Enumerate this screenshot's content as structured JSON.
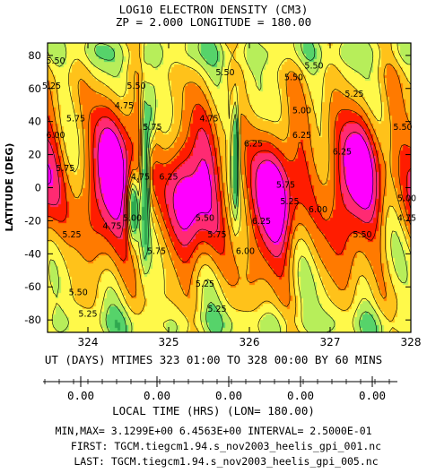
{
  "chart_data": {
    "type": "heatmap",
    "title": "LOG10 ELECTRON DENSITY (CM3)",
    "subtitle": "ZP =    2.000 LONGITUDE =   180.00",
    "ylabel": "LATITUDE (DEG)",
    "xlabel": "UT (DAYS) MTIMES 323 01:00 TO 328 00:00 BY    60 MINS",
    "xlim": [
      323.5,
      328.0
    ],
    "ylim": [
      -87.5,
      87.5
    ],
    "x_ticks": [
      "324",
      "325",
      "326",
      "327",
      "328"
    ],
    "y_ticks": [
      "80",
      "60",
      "40",
      "20",
      "0",
      "-20",
      "-40",
      "-60",
      "-80"
    ],
    "local_time_label": "LOCAL TIME (HRS) (LON= 180.00)",
    "local_time_ticks": [
      "0.00",
      "0.00",
      "0.00",
      "0.00",
      "0.00"
    ],
    "min_max_line": "MIN,MAX=  3.1299E+00  6.4563E+00 INTERVAL=  2.5000E-01",
    "first_file": "FIRST: TGCM.tiegcm1.94.s_nov2003_heelis_gpi_001.nc",
    "last_file": "LAST:  TGCM.tiegcm1.94.s_nov2003_heelis_gpi_005.nc",
    "min": 3.1299,
    "max": 6.4563,
    "interval": 0.25,
    "contour_labels": [
      {
        "text": "5.25",
        "x": 323.55,
        "y": 60
      },
      {
        "text": "5.50",
        "x": 323.6,
        "y": 75
      },
      {
        "text": "6.00",
        "x": 323.6,
        "y": 30
      },
      {
        "text": "5.75",
        "x": 323.72,
        "y": 10
      },
      {
        "text": "5.25",
        "x": 323.8,
        "y": -30
      },
      {
        "text": "5.75",
        "x": 323.85,
        "y": 40
      },
      {
        "text": "5.50",
        "x": 323.88,
        "y": -65
      },
      {
        "text": "4.75",
        "x": 324.45,
        "y": 48
      },
      {
        "text": "4.75",
        "x": 324.3,
        "y": -25
      },
      {
        "text": "5.00",
        "x": 324.55,
        "y": -20
      },
      {
        "text": "4.75",
        "x": 324.65,
        "y": 5
      },
      {
        "text": "5.50",
        "x": 324.6,
        "y": 60
      },
      {
        "text": "5.75",
        "x": 324.8,
        "y": 35
      },
      {
        "text": "5.75",
        "x": 324.85,
        "y": -40
      },
      {
        "text": "6.25",
        "x": 325.0,
        "y": 5
      },
      {
        "text": "4.75",
        "x": 325.5,
        "y": 40
      },
      {
        "text": "5.50",
        "x": 325.45,
        "y": -20
      },
      {
        "text": "5.25",
        "x": 325.45,
        "y": -60
      },
      {
        "text": "5.50",
        "x": 325.7,
        "y": 68
      },
      {
        "text": "6.25",
        "x": 326.05,
        "y": 25
      },
      {
        "text": "6.25",
        "x": 326.15,
        "y": -22
      },
      {
        "text": "6.00",
        "x": 325.95,
        "y": -40
      },
      {
        "text": "5.75",
        "x": 325.6,
        "y": -30
      },
      {
        "text": "5.00",
        "x": 326.65,
        "y": 45
      },
      {
        "text": "6.25",
        "x": 326.65,
        "y": 30
      },
      {
        "text": "5.50",
        "x": 326.55,
        "y": 65
      },
      {
        "text": "5.50",
        "x": 326.8,
        "y": 72
      },
      {
        "text": "5.75",
        "x": 326.45,
        "y": 0
      },
      {
        "text": "5.25",
        "x": 326.5,
        "y": -10
      },
      {
        "text": "6.00",
        "x": 326.85,
        "y": -15
      },
      {
        "text": "6.25",
        "x": 327.15,
        "y": 20
      },
      {
        "text": "5.50",
        "x": 327.4,
        "y": -30
      },
      {
        "text": "5.25",
        "x": 327.3,
        "y": 55
      },
      {
        "text": "5.50",
        "x": 327.9,
        "y": 35
      },
      {
        "text": "4.75",
        "x": 327.95,
        "y": -20
      },
      {
        "text": "5.00",
        "x": 327.95,
        "y": -8
      },
      {
        "text": "5.25",
        "x": 324.0,
        "y": -78
      },
      {
        "text": "5.25",
        "x": 325.6,
        "y": -75
      }
    ],
    "colors": {
      "band_lt_4_5": "#2fa84f",
      "band_4_5_4_75": "#56d36a",
      "band_4_75_5_0": "#b7ee5a",
      "band_5_0_5_25": "#fff94a",
      "band_5_25_5_5": "#ffc21a",
      "band_5_5_5_75": "#ff7a00",
      "band_5_75_6_0": "#ff1c00",
      "band_6_0_6_25": "#ff2a72",
      "band_ge_6_25": "#ff00ff"
    }
  }
}
